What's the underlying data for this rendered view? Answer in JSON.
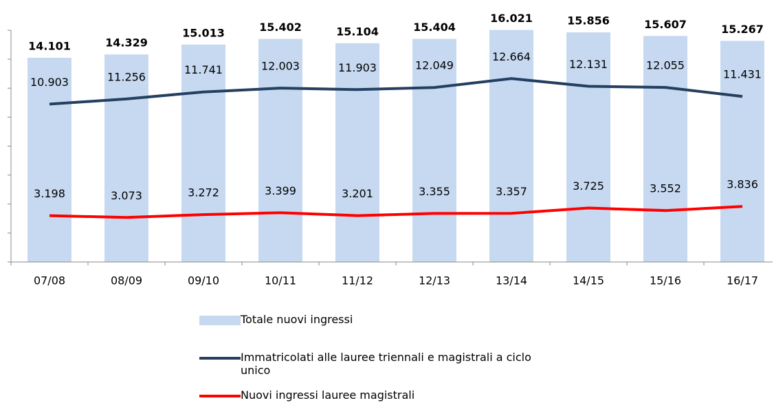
{
  "chart_data": {
    "type": "bar",
    "categories": [
      "07/08",
      "08/09",
      "09/10",
      "10/11",
      "11/12",
      "12/13",
      "13/14",
      "14/15",
      "15/16",
      "16/17"
    ],
    "series": [
      {
        "name": "Totale nuovi ingressi",
        "type": "bar",
        "color": "#c6d9f1",
        "values": [
          14101,
          14329,
          15013,
          15402,
          15104,
          15404,
          16021,
          15856,
          15607,
          15267
        ],
        "value_labels": [
          "14.101",
          "14.329",
          "15.013",
          "15.402",
          "15.104",
          "15.404",
          "16.021",
          "15.856",
          "15.607",
          "15.267"
        ]
      },
      {
        "name": "Immatricolati alle lauree triennali e magistrali a ciclo unico",
        "type": "line",
        "color": "#243f60",
        "values": [
          10903,
          11256,
          11741,
          12003,
          11903,
          12049,
          12664,
          12131,
          12055,
          11431
        ],
        "value_labels": [
          "10.903",
          "11.256",
          "11.741",
          "12.003",
          "11.903",
          "12.049",
          "12.664",
          "12.131",
          "12.055",
          "11.431"
        ]
      },
      {
        "name": "Nuovi ingressi lauree magistrali",
        "type": "line",
        "color": "#ff0000",
        "values": [
          3198,
          3073,
          3272,
          3399,
          3201,
          3355,
          3357,
          3725,
          3552,
          3836
        ],
        "value_labels": [
          "3.198",
          "3.073",
          "3.272",
          "3.399",
          "3.201",
          "3.355",
          "3.357",
          "3.725",
          "3.552",
          "3.836"
        ]
      }
    ],
    "ylim": [
      0,
      16000
    ],
    "yticks": [
      0,
      2000,
      4000,
      6000,
      8000,
      10000,
      12000,
      14000,
      16000
    ]
  }
}
